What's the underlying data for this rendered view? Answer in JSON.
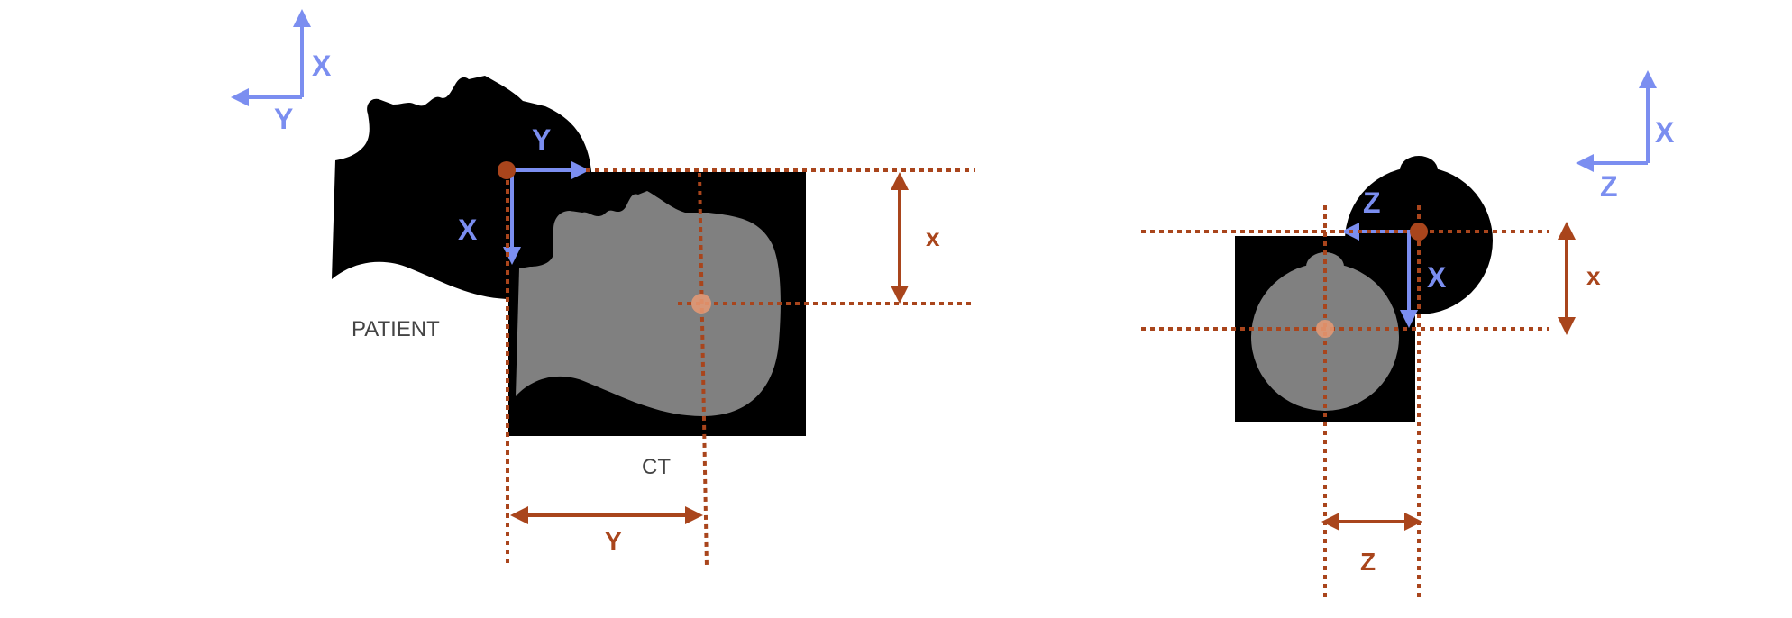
{
  "left_panel": {
    "patient_caption": "PATIENT",
    "ct_caption": "CT",
    "reference_axes": {
      "vertical": "X",
      "horizontal": "Y"
    },
    "patient_axes": {
      "horizontal": "Y",
      "vertical": "X"
    },
    "measure_vertical": "x",
    "measure_horizontal": "Y"
  },
  "right_panel": {
    "reference_axes": {
      "vertical": "X",
      "horizontal": "Z"
    },
    "patient_axes": {
      "horizontal": "Z",
      "vertical": "X"
    },
    "measure_vertical": "x",
    "measure_horizontal": "Z"
  },
  "colors": {
    "axis_blue": "#7b8ef0",
    "measure_red": "#a9451c",
    "origin_highlight": "#e79a74",
    "silhouette": "#000000",
    "ct_image": "#808080"
  }
}
